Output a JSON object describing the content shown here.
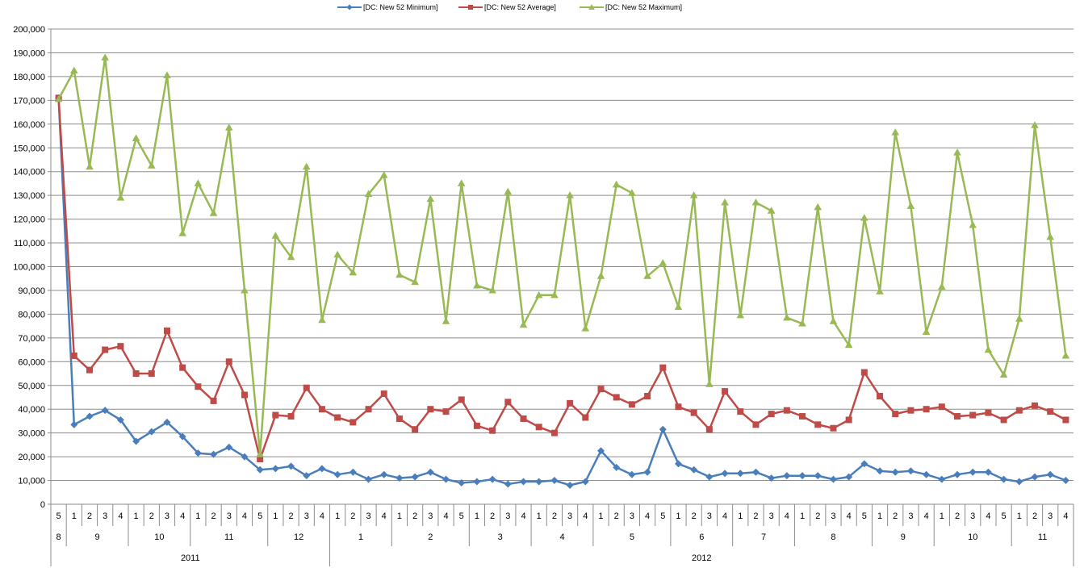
{
  "chart_data": {
    "type": "line",
    "title": "",
    "xlabel": "",
    "ylabel": "",
    "ylim": [
      0,
      200000
    ],
    "y_ticks": [
      0,
      10000,
      20000,
      30000,
      40000,
      50000,
      60000,
      70000,
      80000,
      90000,
      100000,
      110000,
      120000,
      130000,
      140000,
      150000,
      160000,
      170000,
      180000,
      190000,
      200000
    ],
    "y_tick_labels": [
      "0",
      "10,000",
      "20,000",
      "30,000",
      "40,000",
      "50,000",
      "60,000",
      "70,000",
      "80,000",
      "90,000",
      "100,000",
      "110,000",
      "120,000",
      "130,000",
      "140,000",
      "150,000",
      "160,000",
      "170,000",
      "180,000",
      "190,000",
      "200,000"
    ],
    "grid": true,
    "legend_position": "top",
    "categories": [
      "5",
      "1",
      "2",
      "3",
      "4",
      "1",
      "2",
      "3",
      "4",
      "1",
      "2",
      "3",
      "4",
      "5",
      "1",
      "2",
      "3",
      "4",
      "1",
      "2",
      "3",
      "4",
      "1",
      "2",
      "3",
      "4",
      "5",
      "1",
      "2",
      "3",
      "4",
      "1",
      "2",
      "3",
      "4",
      "1",
      "2",
      "3",
      "4",
      "5",
      "1",
      "2",
      "3",
      "4",
      "1",
      "2",
      "3",
      "4",
      "1",
      "2",
      "3",
      "4",
      "5",
      "1",
      "2",
      "3",
      "4",
      "1",
      "2",
      "3",
      "4",
      "5",
      "1",
      "2",
      "3",
      "4"
    ],
    "month_groups": [
      {
        "label": "8",
        "count": 1
      },
      {
        "label": "9",
        "count": 4
      },
      {
        "label": "10",
        "count": 4
      },
      {
        "label": "11",
        "count": 5
      },
      {
        "label": "12",
        "count": 4
      },
      {
        "label": "1",
        "count": 4
      },
      {
        "label": "2",
        "count": 5
      },
      {
        "label": "3",
        "count": 4
      },
      {
        "label": "4",
        "count": 4
      },
      {
        "label": "5",
        "count": 5
      },
      {
        "label": "6",
        "count": 4
      },
      {
        "label": "7",
        "count": 4
      },
      {
        "label": "8",
        "count": 5
      },
      {
        "label": "9",
        "count": 4
      },
      {
        "label": "10",
        "count": 5
      },
      {
        "label": "11",
        "count": 4
      }
    ],
    "year_groups": [
      {
        "label": "2011",
        "count": 18
      },
      {
        "label": "2012",
        "count": 48
      }
    ],
    "series": [
      {
        "name": "[DC: New 52 Minimum]",
        "color": "#4a7ebb",
        "marker": "diamond",
        "values": [
          171000,
          33500,
          37000,
          39500,
          35500,
          26500,
          30500,
          34500,
          28500,
          21500,
          21000,
          24000,
          20000,
          14500,
          15000,
          16000,
          12000,
          15000,
          12500,
          13500,
          10500,
          12500,
          11000,
          11500,
          13500,
          10500,
          9000,
          9500,
          10500,
          8500,
          9500,
          9500,
          10000,
          8000,
          9500,
          22500,
          15500,
          12500,
          13500,
          31500,
          17000,
          14500,
          11500,
          13000,
          13000,
          13500,
          11000,
          12000,
          12000,
          12000,
          10500,
          11500,
          17000,
          14000,
          13500,
          14000,
          12500,
          10500,
          12500,
          13500,
          13500,
          10500,
          9500,
          11500,
          12500,
          10000
        ]
      },
      {
        "name": "[DC: New 52 Average]",
        "color": "#be4b48",
        "marker": "square",
        "values": [
          171000,
          62500,
          56500,
          65000,
          66500,
          55000,
          55000,
          73000,
          57500,
          49500,
          43500,
          60000,
          46000,
          19000,
          37500,
          37000,
          49000,
          40000,
          36500,
          34500,
          40000,
          46500,
          36000,
          31500,
          40000,
          39000,
          44000,
          33000,
          31000,
          43000,
          36000,
          32500,
          30000,
          42500,
          36500,
          48500,
          45000,
          42000,
          45500,
          57500,
          41000,
          38500,
          31500,
          47500,
          39000,
          33500,
          38000,
          39500,
          37000,
          33500,
          32000,
          35500,
          55500,
          45500,
          38000,
          39500,
          40000,
          41000,
          37000,
          37500,
          38500,
          35500,
          39500,
          41500,
          39000,
          35500
        ]
      },
      {
        "name": "[DC: New 52 Maximum]",
        "color": "#98b954",
        "marker": "triangle",
        "values": [
          170500,
          182500,
          142000,
          188000,
          129000,
          154000,
          142500,
          180500,
          114000,
          135000,
          122500,
          158500,
          90000,
          21000,
          113000,
          104000,
          142000,
          77500,
          105000,
          97500,
          130500,
          138500,
          96500,
          93500,
          128500,
          77000,
          135000,
          92000,
          90000,
          131500,
          75500,
          88000,
          88000,
          130000,
          74000,
          96000,
          134500,
          131000,
          96000,
          101500,
          83000,
          130000,
          50500,
          127000,
          79500,
          127000,
          123500,
          78500,
          76000,
          125000,
          77000,
          67000,
          120500,
          89500,
          156500,
          125500,
          72500,
          91500,
          148000,
          117500,
          65000,
          54500,
          78000,
          159500,
          112500,
          62500
        ]
      }
    ]
  }
}
